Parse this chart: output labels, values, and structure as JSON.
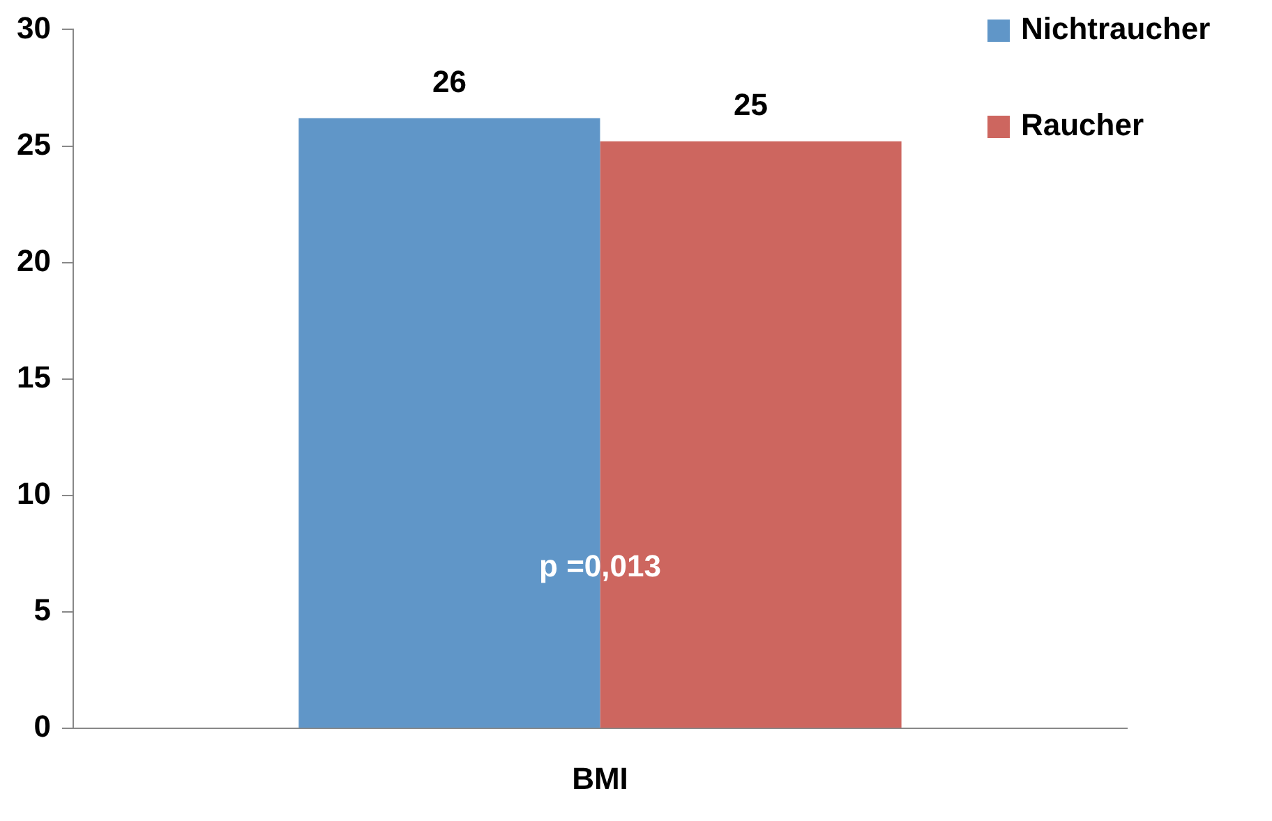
{
  "chart_data": {
    "type": "bar",
    "categories": [
      "BMI"
    ],
    "series": [
      {
        "name": "Nichtraucher",
        "color": "#6096c8",
        "values": [
          26.2
        ],
        "value_labels": [
          "26"
        ]
      },
      {
        "name": "Raucher",
        "color": "#cd665f",
        "values": [
          25.2
        ],
        "value_labels": [
          "25"
        ]
      }
    ],
    "ylim": [
      0,
      30
    ],
    "yticks": [
      0,
      5,
      10,
      15,
      20,
      25,
      30
    ],
    "grid": false,
    "legend": "top right",
    "annotations": [
      "p =0,013"
    ]
  }
}
